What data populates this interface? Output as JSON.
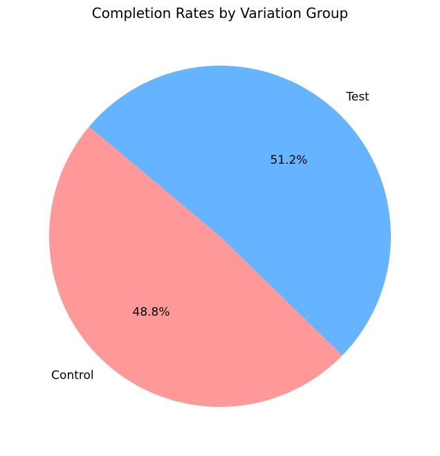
{
  "chart_data": {
    "type": "pie",
    "title": "Completion Rates by Variation Group",
    "categories": [
      "Control",
      "Test"
    ],
    "values": [
      48.8,
      51.2
    ],
    "value_labels": [
      "48.8%",
      "51.2%"
    ],
    "colors": [
      "#ff9999",
      "#66b3ff"
    ],
    "start_angle_deg": 140,
    "direction": "counterclockwise",
    "legend": "none"
  }
}
